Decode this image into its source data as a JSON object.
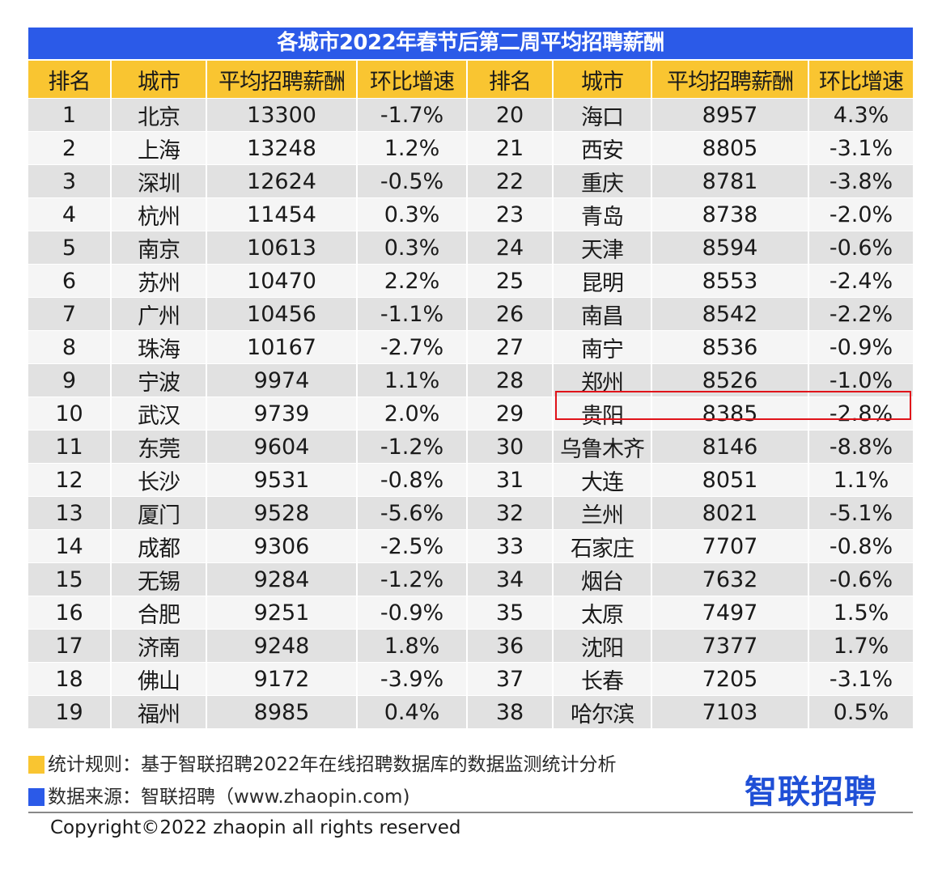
{
  "chart_data": {
    "type": "table",
    "title": "各城市2022年春节后第二周平均招聘薪酬",
    "columns": [
      "排名",
      "城市",
      "平均招聘薪酬",
      "环比增速",
      "排名",
      "城市",
      "平均招聘薪酬",
      "环比增速"
    ],
    "rows": [
      [
        "1",
        "北京",
        "13300",
        "-1.7%",
        "20",
        "海口",
        "8957",
        "4.3%"
      ],
      [
        "2",
        "上海",
        "13248",
        "1.2%",
        "21",
        "西安",
        "8805",
        "-3.1%"
      ],
      [
        "3",
        "深圳",
        "12624",
        "-0.5%",
        "22",
        "重庆",
        "8781",
        "-3.8%"
      ],
      [
        "4",
        "杭州",
        "11454",
        "0.3%",
        "23",
        "青岛",
        "8738",
        "-2.0%"
      ],
      [
        "5",
        "南京",
        "10613",
        "0.3%",
        "24",
        "天津",
        "8594",
        "-0.6%"
      ],
      [
        "6",
        "苏州",
        "10470",
        "2.2%",
        "25",
        "昆明",
        "8553",
        "-2.4%"
      ],
      [
        "7",
        "广州",
        "10456",
        "-1.1%",
        "26",
        "南昌",
        "8542",
        "-2.2%"
      ],
      [
        "8",
        "珠海",
        "10167",
        "-2.7%",
        "27",
        "南宁",
        "8536",
        "-0.9%"
      ],
      [
        "9",
        "宁波",
        "9974",
        "1.1%",
        "28",
        "郑州",
        "8526",
        "-1.0%"
      ],
      [
        "10",
        "武汉",
        "9739",
        "2.0%",
        "29",
        "贵阳",
        "8385",
        "-2.8%"
      ],
      [
        "11",
        "东莞",
        "9604",
        "-1.2%",
        "30",
        "乌鲁木齐",
        "8146",
        "-8.8%"
      ],
      [
        "12",
        "长沙",
        "9531",
        "-0.8%",
        "31",
        "大连",
        "8051",
        "1.1%"
      ],
      [
        "13",
        "厦门",
        "9528",
        "-5.6%",
        "32",
        "兰州",
        "8021",
        "-5.1%"
      ],
      [
        "14",
        "成都",
        "9306",
        "-2.5%",
        "33",
        "石家庄",
        "7707",
        "-0.8%"
      ],
      [
        "15",
        "无锡",
        "9284",
        "-1.2%",
        "34",
        "烟台",
        "7632",
        "-0.6%"
      ],
      [
        "16",
        "合肥",
        "9251",
        "-0.9%",
        "35",
        "太原",
        "7497",
        "1.5%"
      ],
      [
        "17",
        "济南",
        "9248",
        "1.8%",
        "36",
        "沈阳",
        "7377",
        "1.7%"
      ],
      [
        "18",
        "佛山",
        "9172",
        "-3.9%",
        "37",
        "长春",
        "7205",
        "-3.1%"
      ],
      [
        "19",
        "福州",
        "8985",
        "0.4%",
        "38",
        "哈尔滨",
        "7103",
        "0.5%"
      ]
    ],
    "highlight_row": 9,
    "highlight_side": "right"
  },
  "notes": {
    "rule": "统计规则：基于智联招聘2022年在线招聘数据库的数据监测统计分析",
    "source": "数据来源：智联招聘（www.zhaopin.com)"
  },
  "brand": {
    "logo_text": "智联招聘"
  },
  "copyright": "Copyright©2022 zhaopin all rights reserved",
  "colors": {
    "title_bg": "#2b5ae8",
    "header_bg": "#f9c531",
    "row_odd": "#e1e1e1",
    "row_even": "#f5f5f5",
    "highlight": "#e0131a",
    "brand": "#1f4fd6"
  }
}
